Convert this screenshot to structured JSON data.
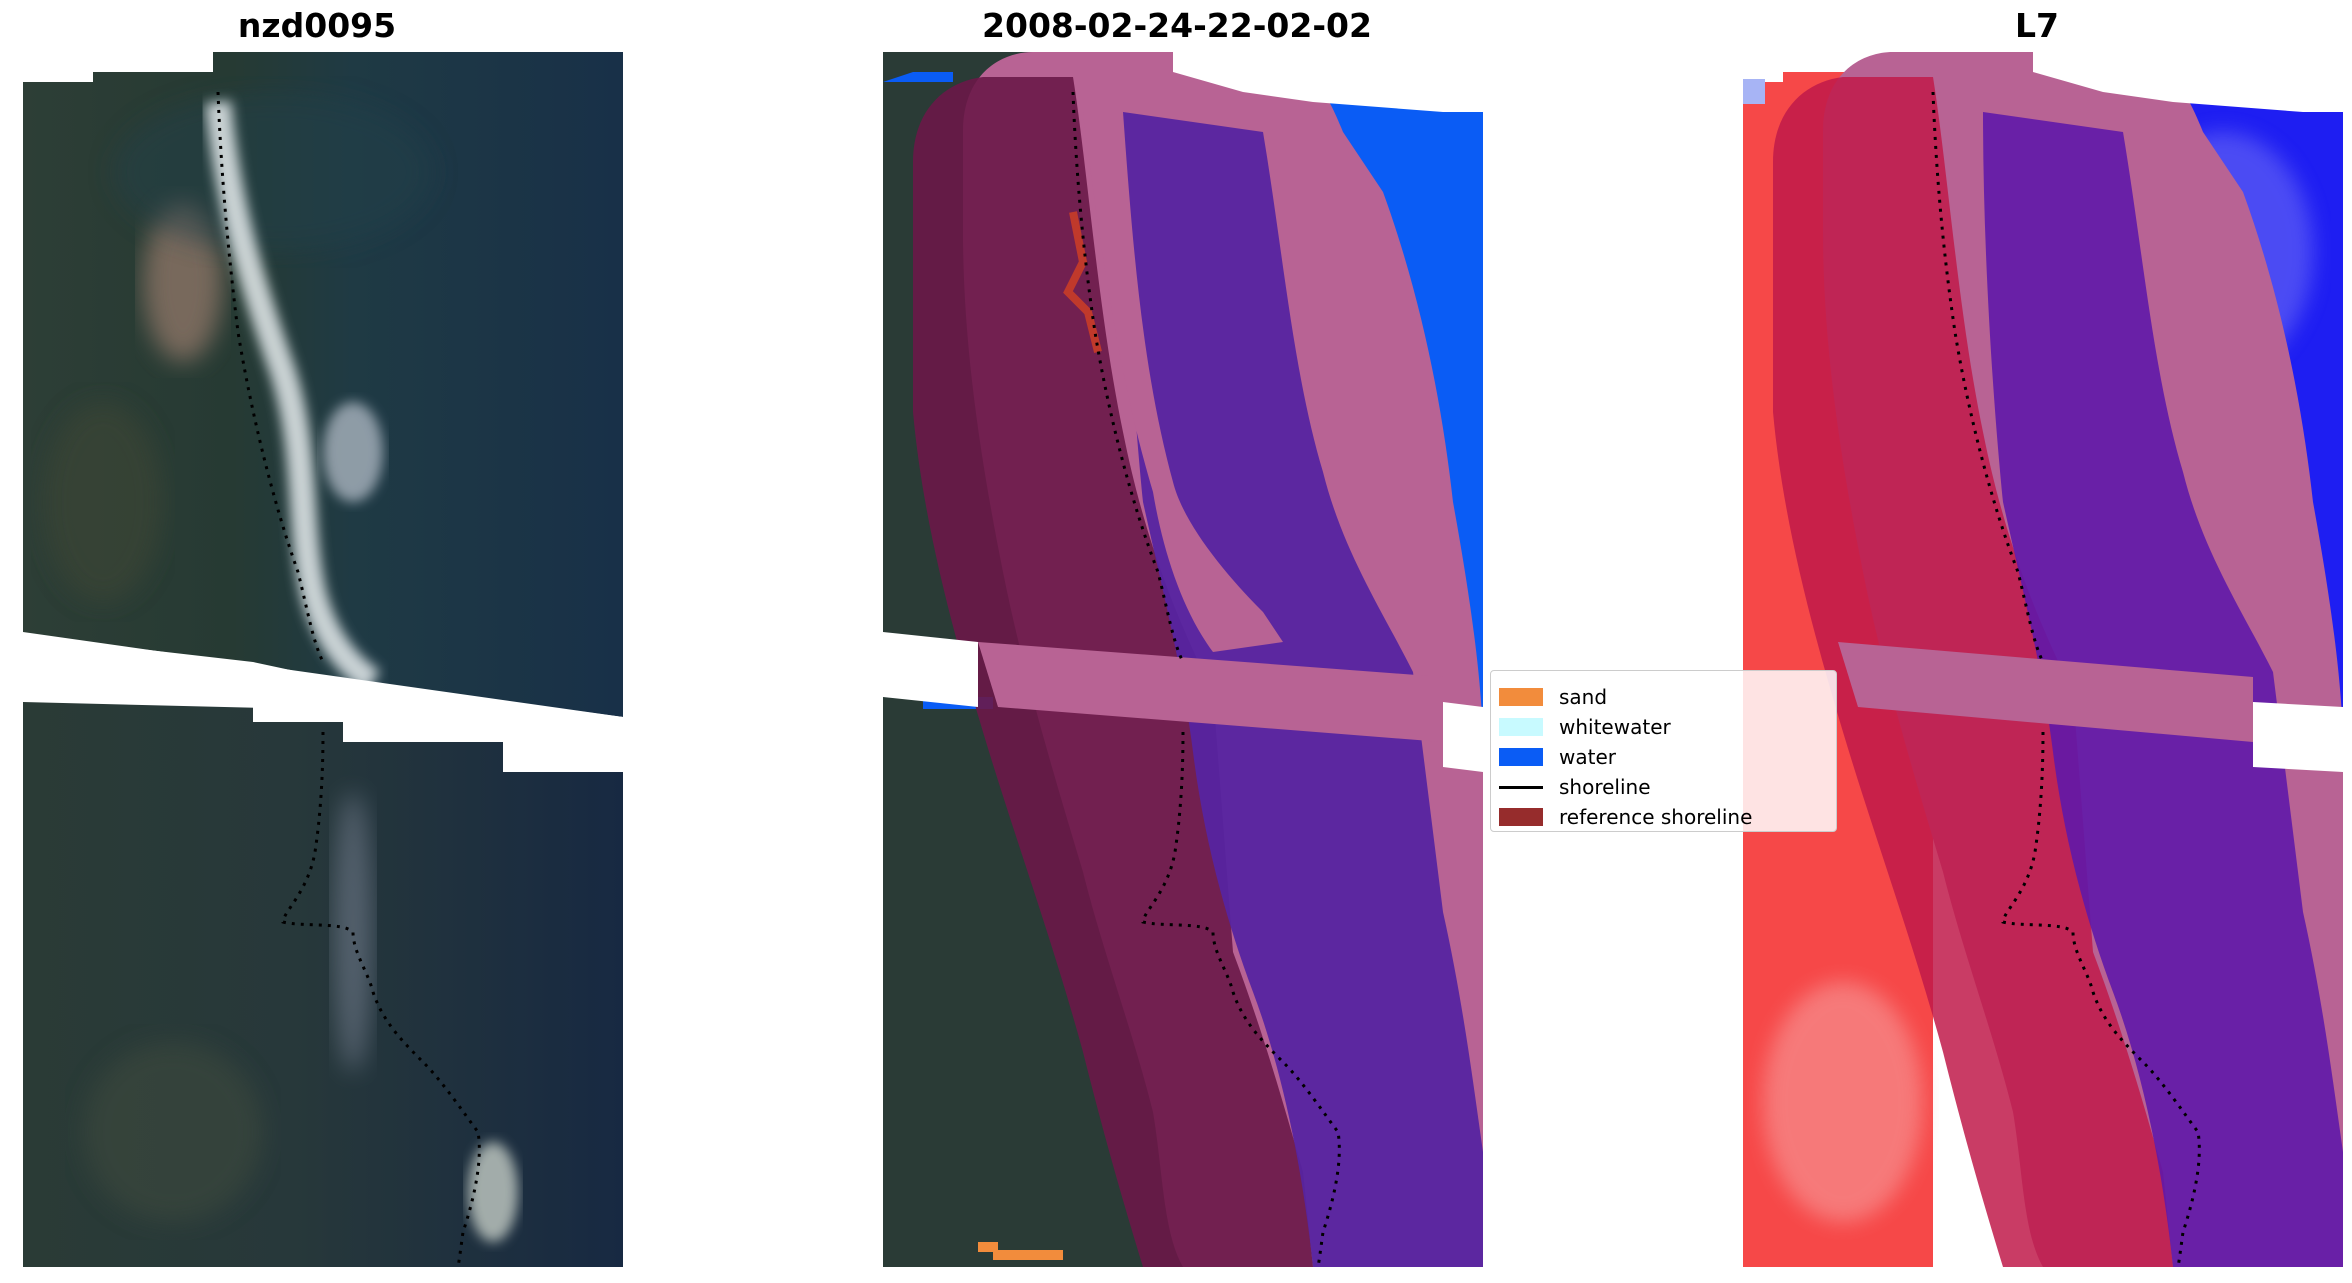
{
  "titles": {
    "left": "nzd0095",
    "middle": "2008-02-24-22-02-02",
    "right": "L7"
  },
  "legend": {
    "items": [
      {
        "label": "sand",
        "color": "#f28c3c",
        "kind": "patch"
      },
      {
        "label": "whitewater",
        "color": "#c8faff",
        "kind": "patch"
      },
      {
        "label": "water",
        "color": "#0a5cf5",
        "kind": "patch"
      },
      {
        "label": "shoreline",
        "color": "#000000",
        "kind": "line"
      },
      {
        "label": "reference shoreline",
        "color": "#962c2c",
        "kind": "patch"
      }
    ]
  },
  "colors": {
    "rgb_land": "#26382e",
    "rgb_water": "#19304a",
    "rgb_surf": "#e6ecee",
    "class_water": "#0a5cf5",
    "buffer_overlay": "#b86394",
    "land_mask": "#6a1848",
    "water_mask": "#5624a0",
    "index_red": "#f64848",
    "index_blue": "#1e1ef2"
  }
}
